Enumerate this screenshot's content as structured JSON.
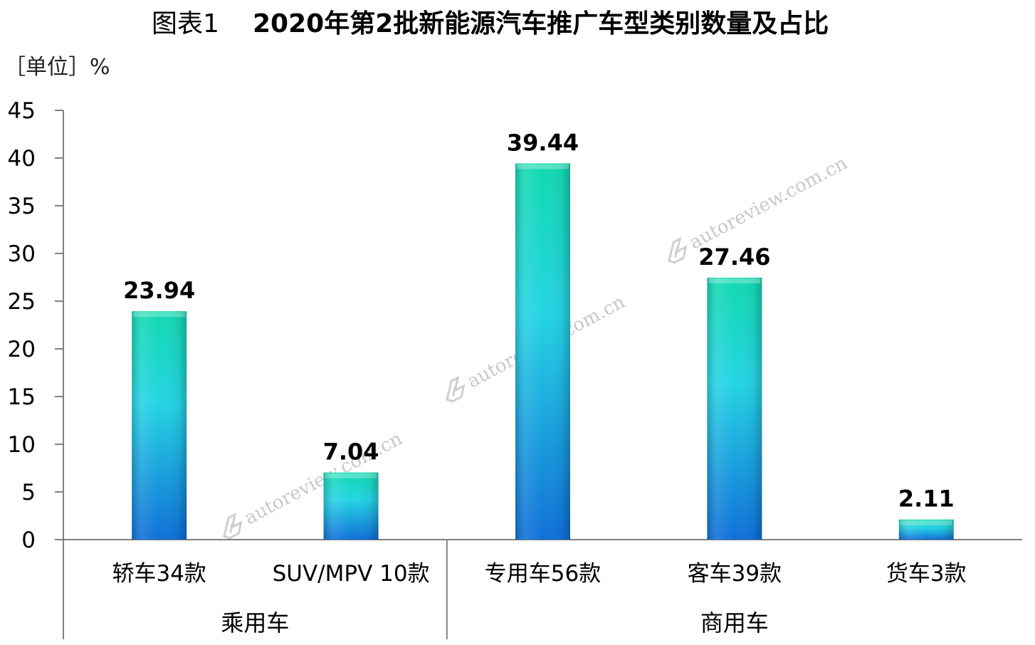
{
  "title": {
    "prefix": "图表1",
    "main": "2020年第2批新能源汽车推广车型类别数量及占比"
  },
  "unit_label": "［单位］%",
  "watermark": "autoreview.com.cn",
  "colors": {
    "bar_top": "#12d9b0",
    "bar_mid": "#25d4e4",
    "bar_bottom": "#1070d8",
    "axis": "#808080"
  },
  "chart_data": {
    "type": "bar",
    "title": "2020年第2批新能源汽车推广车型类别数量及占比",
    "ylabel": "［单位］%",
    "ylim": [
      0,
      45
    ],
    "yticks": [
      0,
      5,
      10,
      15,
      20,
      25,
      30,
      35,
      40,
      45
    ],
    "grid": false,
    "categories": [
      "轿车34款",
      "SUV/MPV 10款",
      "专用车56款",
      "客车39款",
      "货车3款"
    ],
    "values": [
      23.94,
      7.04,
      39.44,
      27.46,
      2.11
    ],
    "value_labels": [
      "23.94",
      "7.04",
      "39.44",
      "27.46",
      "2.11"
    ],
    "groups": [
      {
        "name": "乘用车",
        "categories": [
          "轿车34款",
          "SUV/MPV 10款"
        ]
      },
      {
        "name": "商用车",
        "categories": [
          "专用车56款",
          "客车39款",
          "货车3款"
        ]
      }
    ]
  }
}
